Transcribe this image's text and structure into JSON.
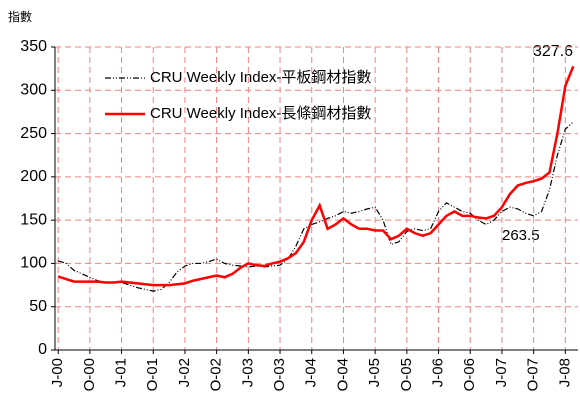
{
  "chart_data": {
    "type": "line",
    "y_label": "指數",
    "annotations": [
      "327.6",
      "263.5"
    ],
    "x": [
      0,
      0.25,
      0.5,
      0.75,
      1,
      1.25,
      1.5,
      1.75,
      2,
      2.25,
      2.5,
      2.75,
      3,
      3.25,
      3.5,
      3.75,
      4,
      4.25,
      4.5,
      4.75,
      5,
      5.25,
      5.5,
      5.75,
      6,
      6.25,
      6.5,
      6.75,
      7,
      7.25,
      7.5,
      7.75,
      8,
      8.25,
      8.5,
      8.75,
      9,
      9.25,
      9.5,
      9.75,
      10,
      10.25,
      10.5,
      10.75,
      11,
      11.25,
      11.5,
      11.75,
      12,
      12.25,
      12.5,
      12.75,
      13,
      13.25,
      13.5,
      13.75,
      14,
      14.25,
      14.5,
      14.75,
      15,
      15.25,
      15.5,
      15.75,
      16,
      16.25
    ],
    "series": [
      {
        "name": "CRU Weekly Index-平板鋼材指數",
        "color": "#000000",
        "dash": true,
        "values": [
          103,
          100,
          92,
          88,
          84,
          80,
          78,
          78,
          78,
          75,
          72,
          70,
          68,
          70,
          78,
          90,
          97,
          100,
          100,
          102,
          105,
          100,
          98,
          97,
          96,
          97,
          96,
          97,
          98,
          105,
          120,
          140,
          145,
          148,
          152,
          155,
          160,
          158,
          160,
          163,
          165,
          150,
          122,
          125,
          137,
          140,
          138,
          140,
          160,
          170,
          165,
          160,
          158,
          150,
          145,
          150,
          160,
          165,
          163,
          158,
          155,
          160,
          185,
          225,
          255,
          263.5
        ]
      },
      {
        "name": "CRU Weekly Index-長條鋼材指數",
        "color": "#ff0000",
        "dash": false,
        "values": [
          85,
          82,
          79,
          79,
          79,
          79,
          78,
          78,
          79,
          78,
          77,
          76,
          75,
          75,
          75,
          76,
          77,
          80,
          82,
          84,
          86,
          84,
          88,
          95,
          100,
          98,
          97,
          100,
          102,
          106,
          112,
          125,
          150,
          167,
          140,
          145,
          152,
          145,
          140,
          140,
          138,
          138,
          128,
          132,
          140,
          135,
          132,
          135,
          145,
          155,
          160,
          155,
          155,
          153,
          152,
          155,
          165,
          180,
          190,
          193,
          195,
          198,
          205,
          250,
          305,
          327.6
        ]
      }
    ],
    "xlim": [
      -0.1,
      16.4
    ],
    "xticks": [
      {
        "value": 0,
        "label": "J-00"
      },
      {
        "value": 1,
        "label": "O-00"
      },
      {
        "value": 2,
        "label": "J-01"
      },
      {
        "value": 3,
        "label": "O-01"
      },
      {
        "value": 4,
        "label": "J-02"
      },
      {
        "value": 5,
        "label": "O-02"
      },
      {
        "value": 6,
        "label": "J-03"
      },
      {
        "value": 7,
        "label": "O-03"
      },
      {
        "value": 8,
        "label": "J-04"
      },
      {
        "value": 9,
        "label": "O-04"
      },
      {
        "value": 10,
        "label": "J-05"
      },
      {
        "value": 11,
        "label": "O-05"
      },
      {
        "value": 12,
        "label": "J-06"
      },
      {
        "value": 13,
        "label": "O-06"
      },
      {
        "value": 14,
        "label": "J-07"
      },
      {
        "value": 15,
        "label": "O-07"
      },
      {
        "value": 16,
        "label": "J-08"
      }
    ],
    "ylim": [
      0,
      350
    ],
    "yticks": [
      0,
      50,
      100,
      150,
      200,
      250,
      300,
      350
    ],
    "grid": true
  }
}
